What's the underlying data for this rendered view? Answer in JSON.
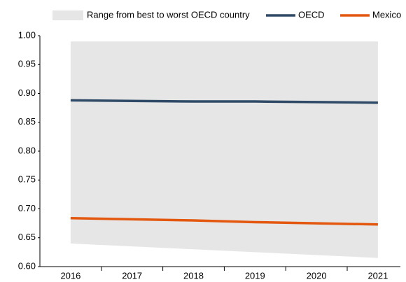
{
  "chart_data": {
    "type": "line",
    "categories": [
      "2016",
      "2017",
      "2018",
      "2019",
      "2020",
      "2021"
    ],
    "range": {
      "name": "Range from best to worst OECD country",
      "color": "#e6e6e6",
      "upper": [
        0.99,
        0.99,
        0.99,
        0.99,
        0.99,
        0.99
      ],
      "lower": [
        0.64,
        0.635,
        0.63,
        0.625,
        0.62,
        0.615
      ]
    },
    "series": [
      {
        "name": "OECD",
        "color": "#2f4a66",
        "values": [
          0.888,
          0.887,
          0.886,
          0.886,
          0.885,
          0.884
        ]
      },
      {
        "name": "Mexico",
        "color": "#e3570e",
        "values": [
          0.684,
          0.682,
          0.68,
          0.677,
          0.675,
          0.673
        ]
      }
    ],
    "ylim": [
      0.6,
      1.0
    ],
    "yticks": [
      {
        "value": 0.6,
        "label": "0.60"
      },
      0.65,
      {
        "value": 0.7,
        "label": "0.70"
      },
      0.75,
      {
        "value": 0.8,
        "label": "0.80"
      },
      0.85,
      {
        "value": 0.9,
        "label": "0.90"
      },
      0.95,
      {
        "value": 1.0,
        "label": "1.00"
      }
    ],
    "grid": false
  }
}
